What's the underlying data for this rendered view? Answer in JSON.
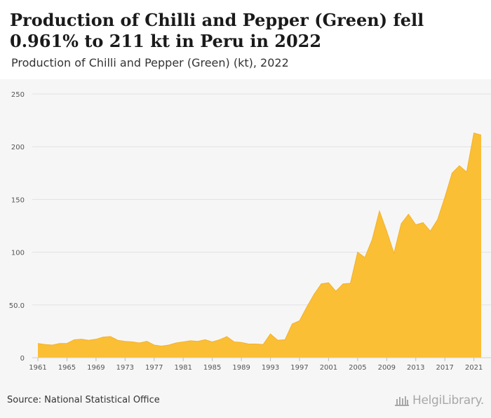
{
  "header": {
    "title": "Production of Chilli and Pepper (Green) fell 0.961% to 211 kt in Peru in 2022",
    "subtitle": "Production of Chilli and Pepper (Green) (kt), 2022"
  },
  "footer": {
    "source": "Source: National Statistical Office",
    "logo_text": "HelgiLibrary."
  },
  "colors": {
    "area_fill": "#fbbf35",
    "area_stroke": "#f3b12a",
    "grid": "#e2e2e2",
    "tick_text": "#555555"
  },
  "chart_data": {
    "type": "area",
    "title": "Production of Chilli and Pepper (Green) (kt), 2022",
    "xlabel": "",
    "ylabel": "",
    "xlim": [
      1961,
      2022
    ],
    "ylim": [
      0,
      250
    ],
    "yticks": [
      0,
      50,
      100,
      150,
      200,
      250
    ],
    "ytick_labels": [
      "0",
      "50.0",
      "100",
      "150",
      "200",
      "250"
    ],
    "xticks": [
      1961,
      1965,
      1969,
      1973,
      1977,
      1981,
      1985,
      1989,
      1993,
      1997,
      2001,
      2005,
      2009,
      2013,
      2017,
      2021
    ],
    "grid": true,
    "legend": "none",
    "series": [
      {
        "x": [
          1961,
          1962,
          1963,
          1964,
          1965,
          1966,
          1967,
          1968,
          1969,
          1970,
          1971,
          1972,
          1973,
          1974,
          1975,
          1976,
          1977,
          1978,
          1979,
          1980,
          1981,
          1982,
          1983,
          1984,
          1985,
          1986,
          1987,
          1988,
          1989,
          1990,
          1991,
          1992,
          1993,
          1994,
          1995,
          1996,
          1997,
          1998,
          1999,
          2000,
          2001,
          2002,
          2003,
          2004,
          2005,
          2006,
          2007,
          2008,
          2009,
          2010,
          2011,
          2012,
          2013,
          2014,
          2015,
          2016,
          2017,
          2018,
          2019,
          2020,
          2021,
          2022
        ],
        "values": [
          13.5,
          12.5,
          12,
          13.5,
          13.5,
          17,
          17.5,
          16.5,
          17.5,
          19.5,
          20,
          16.5,
          15.5,
          15,
          14,
          15.5,
          12,
          11,
          12,
          14,
          15,
          16,
          15.5,
          17,
          15,
          17,
          20,
          15,
          14.5,
          13,
          13,
          12.5,
          22.5,
          16.5,
          17,
          32,
          35,
          48,
          60,
          70,
          71,
          63,
          70,
          70.5,
          100,
          95,
          112,
          139,
          120,
          99,
          127,
          136,
          126,
          128,
          120,
          131,
          152,
          175,
          182,
          176,
          213,
          211
        ]
      }
    ]
  }
}
